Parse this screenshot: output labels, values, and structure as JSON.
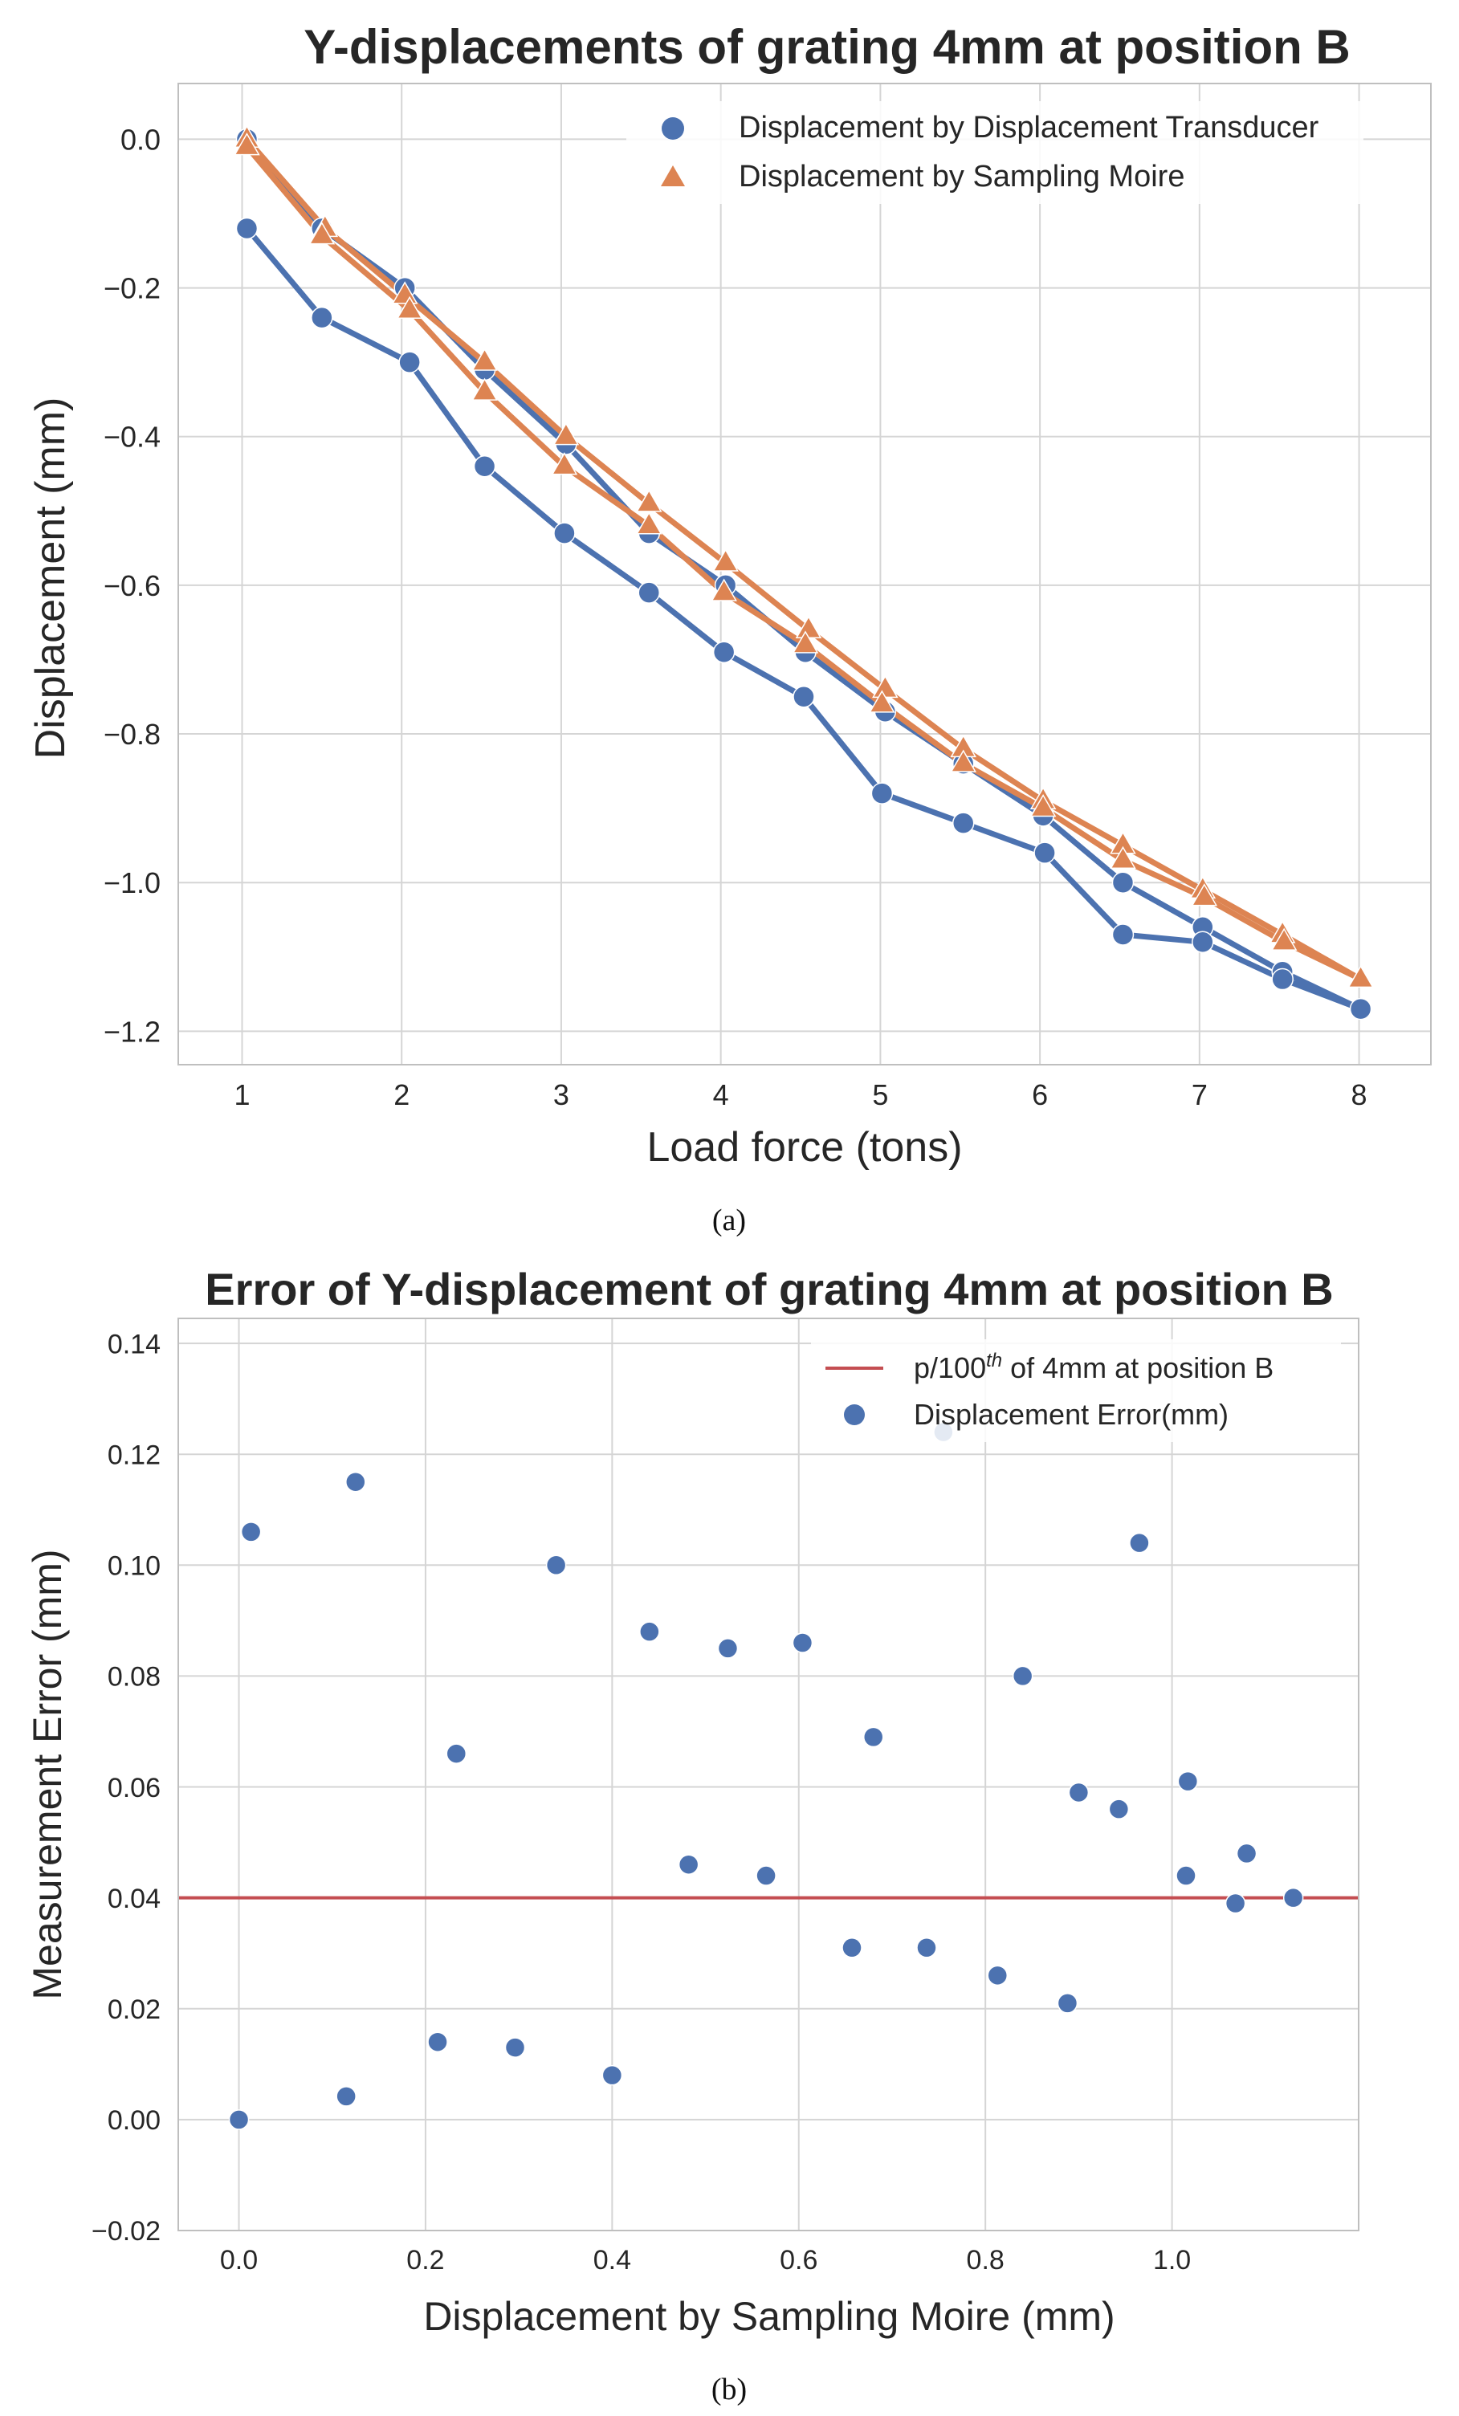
{
  "colors": {
    "transducer": "#4C72B0",
    "moire": "#DD8452",
    "threshold": "#C44E52",
    "grid": "#D5D5D5",
    "frame": "#BFBFBF",
    "background": "#FFFFFF",
    "text": "#262626"
  },
  "chart_data": [
    {
      "type": "line",
      "title": "Y-displacements of grating 4mm at position B",
      "xlabel": "Load force (tons)",
      "ylabel": "Displacement (mm)",
      "caption": "(a)",
      "xlim": [
        0.6,
        8.45
      ],
      "ylim": [
        -1.245,
        0.075
      ],
      "xticks": [
        1,
        2,
        3,
        4,
        5,
        6,
        7,
        8
      ],
      "xtick_labels": [
        "1",
        "2",
        "3",
        "4",
        "5",
        "6",
        "7",
        "8"
      ],
      "yticks": [
        0.0,
        -0.2,
        -0.4,
        -0.6,
        -0.8,
        -1.0,
        -1.2
      ],
      "ytick_labels": [
        "0.0",
        "−0.2",
        "−0.4",
        "−0.6",
        "−0.8",
        "−1.0",
        "−1.2"
      ],
      "grid": true,
      "legend_position": "top-right",
      "series": [
        {
          "name": "Displacement by Displacement Transducer",
          "marker": "circle",
          "color": "#4C72B0",
          "x": [
            1.03,
            1.5,
            2.02,
            2.52,
            3.03,
            3.55,
            4.03,
            4.53,
            5.03,
            5.52,
            6.02,
            6.52,
            7.02,
            7.52,
            8.01,
            7.52,
            7.02,
            6.52,
            6.03,
            5.52,
            5.01,
            4.52,
            4.02,
            3.55,
            3.02,
            2.52,
            2.05,
            1.5,
            1.03
          ],
          "y": [
            0.0,
            -0.12,
            -0.2,
            -0.31,
            -0.41,
            -0.53,
            -0.6,
            -0.69,
            -0.77,
            -0.84,
            -0.91,
            -1.0,
            -1.06,
            -1.12,
            -1.17,
            -1.13,
            -1.08,
            -1.07,
            -0.96,
            -0.92,
            -0.88,
            -0.75,
            -0.69,
            -0.61,
            -0.53,
            -0.44,
            -0.3,
            -0.24,
            -0.12
          ]
        },
        {
          "name": "Displacement by Sampling Moire",
          "marker": "triangle",
          "color": "#DD8452",
          "x": [
            1.03,
            1.52,
            2.02,
            2.52,
            3.03,
            3.55,
            4.03,
            4.55,
            5.03,
            5.52,
            6.02,
            6.52,
            7.02,
            7.52,
            8.01,
            7.53,
            7.03,
            6.52,
            6.02,
            5.52,
            5.01,
            4.53,
            4.02,
            3.55,
            3.02,
            2.52,
            2.05,
            1.5,
            1.03
          ],
          "y": [
            0.0,
            -0.12,
            -0.21,
            -0.3,
            -0.4,
            -0.49,
            -0.57,
            -0.66,
            -0.74,
            -0.82,
            -0.89,
            -0.95,
            -1.01,
            -1.07,
            -1.13,
            -1.08,
            -1.02,
            -0.97,
            -0.9,
            -0.84,
            -0.76,
            -0.68,
            -0.61,
            -0.52,
            -0.44,
            -0.34,
            -0.23,
            -0.13,
            -0.01
          ]
        }
      ]
    },
    {
      "type": "scatter",
      "title": "Error of Y-displacement of grating 4mm at position B",
      "xlabel": "Displacement by Sampling Moire (mm)",
      "ylabel": "Measurement Error (mm)",
      "caption": "(b)",
      "xlim": [
        -0.065,
        1.2
      ],
      "ylim": [
        -0.02,
        0.1445
      ],
      "xticks": [
        0.0,
        0.2,
        0.4,
        0.6,
        0.8,
        1.0
      ],
      "xtick_labels": [
        "0.0",
        "0.2",
        "0.4",
        "0.6",
        "0.8",
        "1.0"
      ],
      "yticks": [
        -0.02,
        0.0,
        0.02,
        0.04,
        0.06,
        0.08,
        0.1,
        0.12,
        0.14
      ],
      "ytick_labels": [
        "−0.02",
        "0.00",
        "0.02",
        "0.04",
        "0.06",
        "0.08",
        "0.10",
        "0.12",
        "0.14"
      ],
      "grid": true,
      "legend_position": "top-right",
      "reference_line": {
        "name_prefix": "p/100",
        "name_superscript": "th",
        "name_suffix": " of 4mm at position B",
        "y": 0.04,
        "color": "#C44E52"
      },
      "series": [
        {
          "name": "Displacement Error(mm)",
          "marker": "circle",
          "color": "#4C72B0",
          "x": [
            0.0,
            0.013,
            0.115,
            0.125,
            0.213,
            0.233,
            0.296,
            0.34,
            0.4,
            0.44,
            0.482,
            0.524,
            0.565,
            0.604,
            0.657,
            0.68,
            0.737,
            0.755,
            0.813,
            0.84,
            0.888,
            0.9,
            0.943,
            0.965,
            1.015,
            1.017,
            1.068,
            1.08,
            1.13
          ],
          "y": [
            0.0,
            0.106,
            0.0042,
            0.115,
            0.014,
            0.066,
            0.013,
            0.1,
            0.008,
            0.088,
            0.046,
            0.085,
            0.044,
            0.086,
            0.031,
            0.069,
            0.031,
            0.124,
            0.026,
            0.08,
            0.021,
            0.059,
            0.056,
            0.104,
            0.044,
            0.061,
            0.039,
            0.048,
            0.04
          ]
        }
      ]
    }
  ]
}
